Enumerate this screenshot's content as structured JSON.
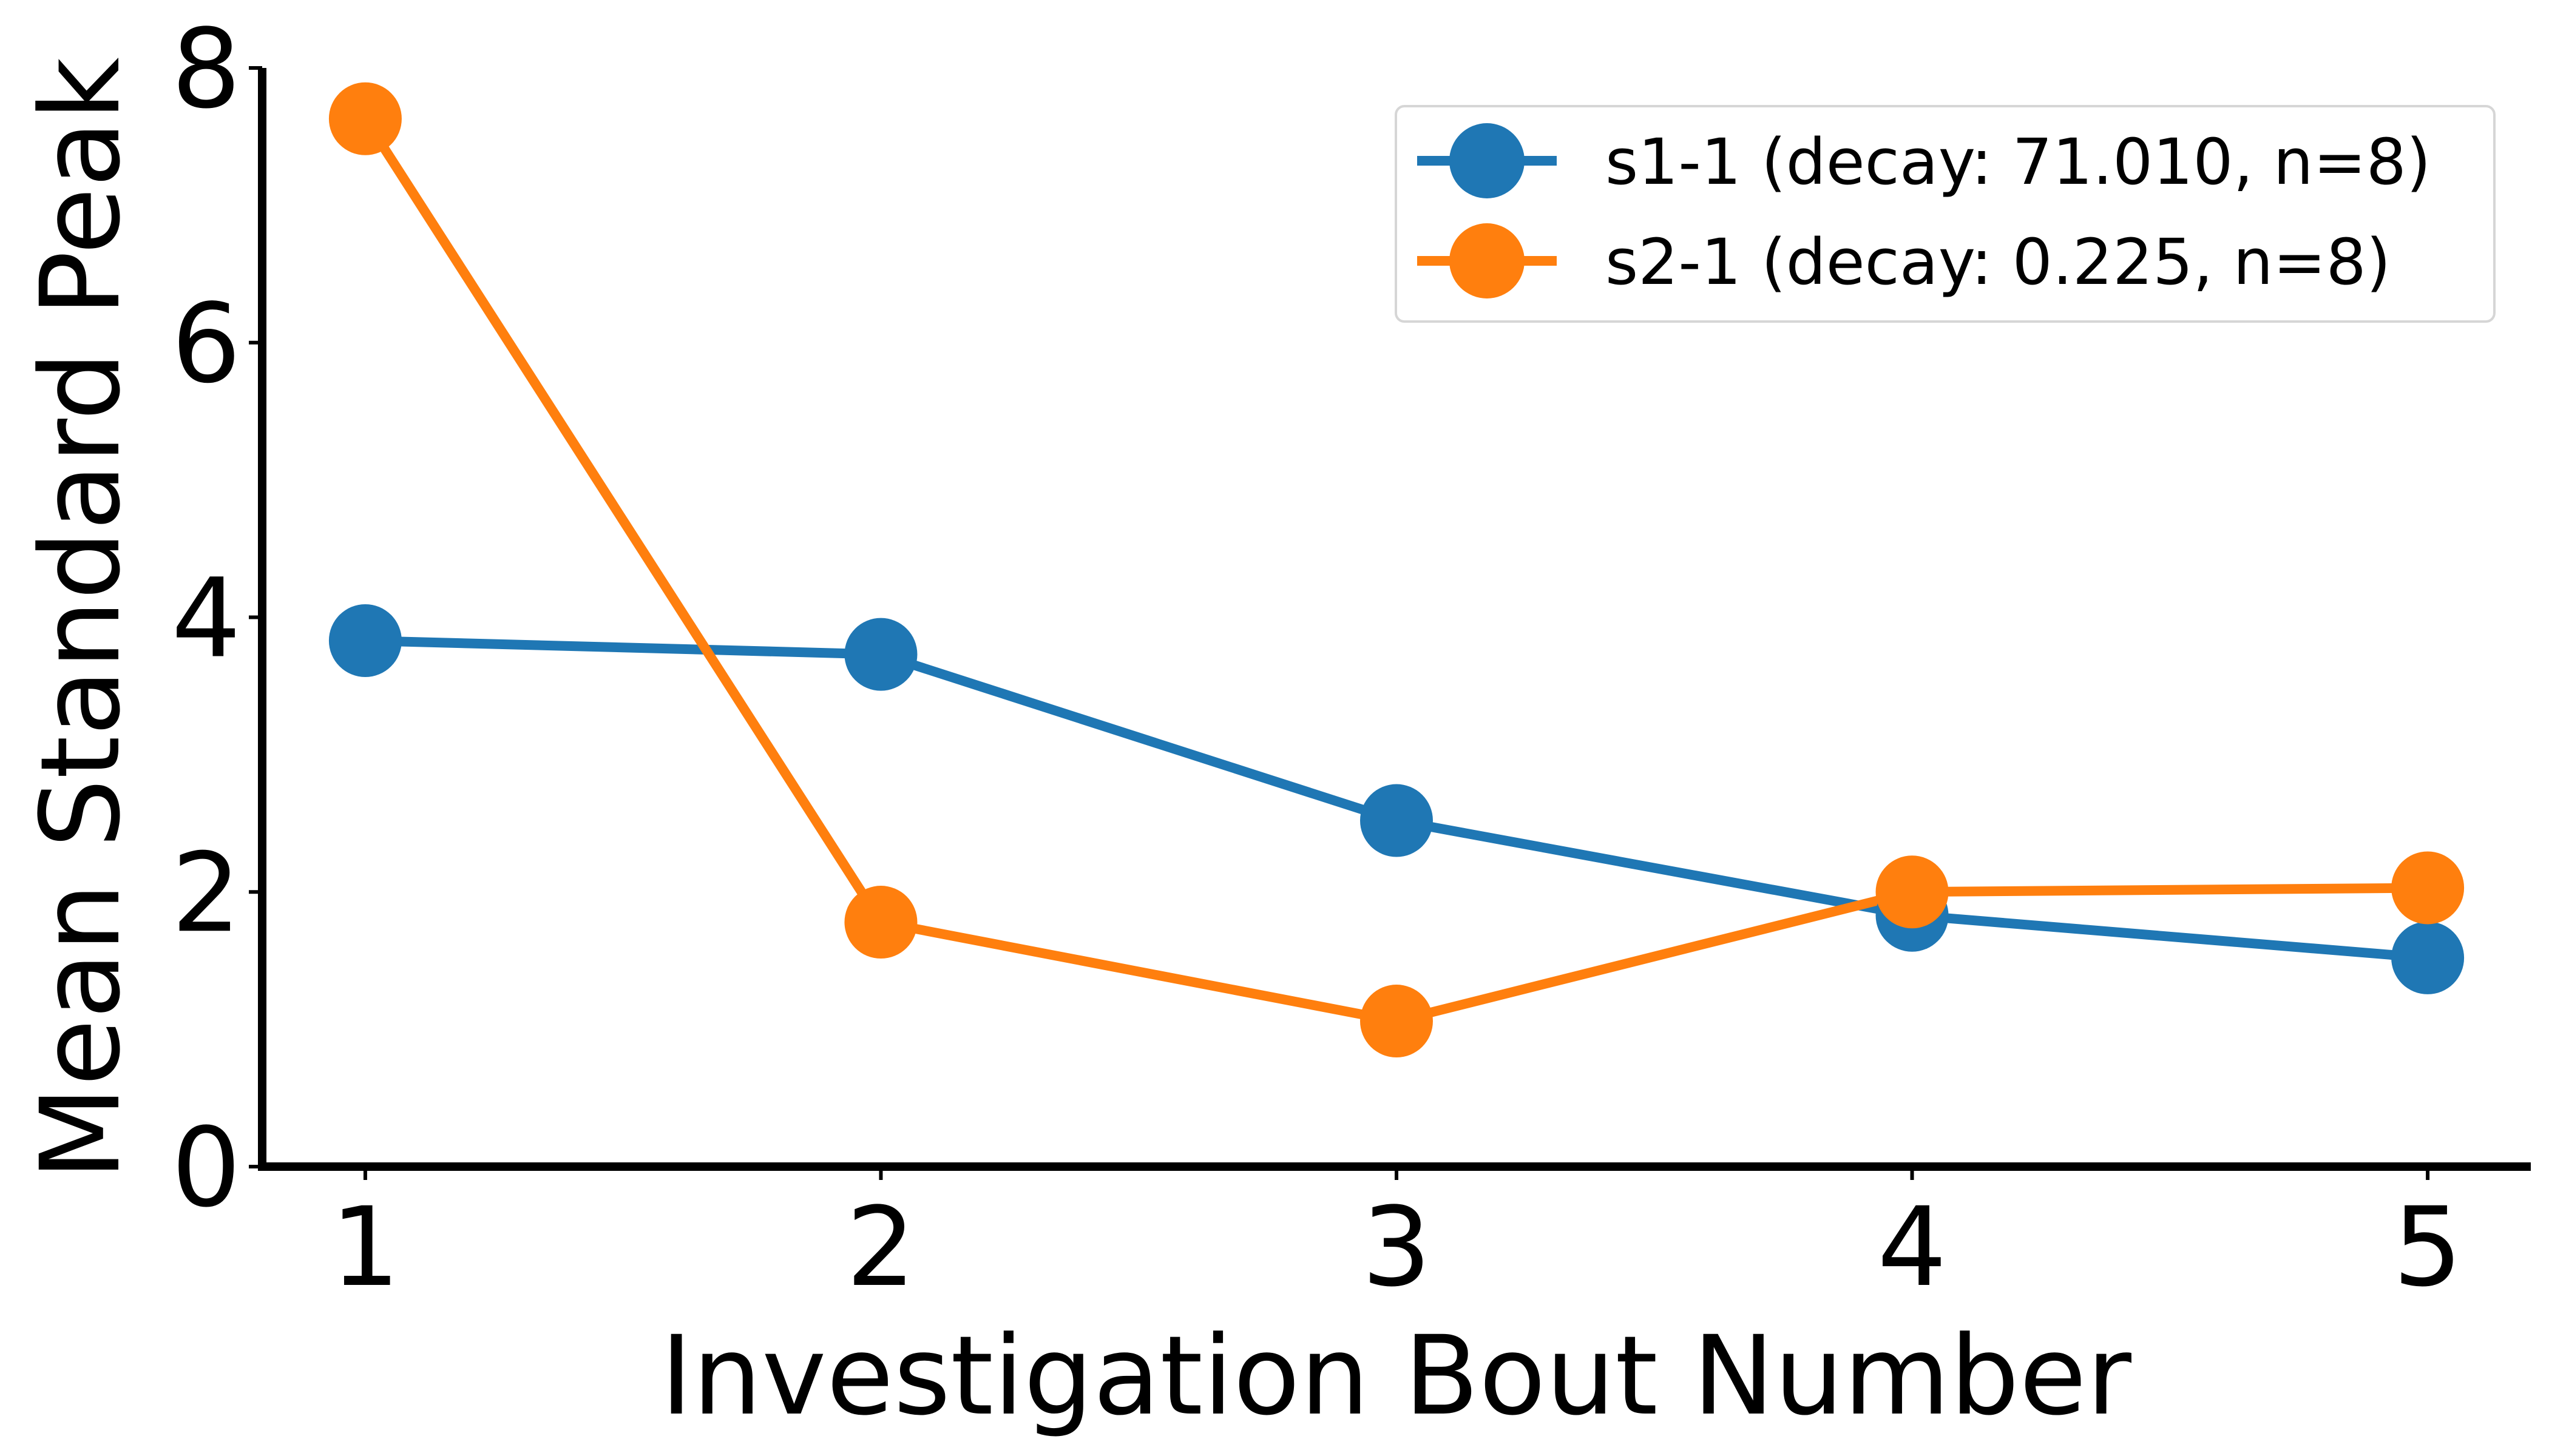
{
  "chart_data": {
    "type": "line",
    "title": "",
    "xlabel": "Investigation Bout Number",
    "ylabel": "Mean Standard Peak",
    "x": [
      1,
      2,
      3,
      4,
      5
    ],
    "xlim": [
      0.8,
      5.2
    ],
    "ylim": [
      0,
      8
    ],
    "xticks": [
      1,
      2,
      3,
      4,
      5
    ],
    "yticks": [
      0,
      2,
      4,
      6,
      8
    ],
    "grid": false,
    "legend_position": "top-right",
    "series": [
      {
        "name": "s1-1 (decay: 71.010, n=8)",
        "color": "#1f77b4",
        "values": [
          3.83,
          3.73,
          2.52,
          1.83,
          1.52
        ]
      },
      {
        "name": "s2-1 (decay: 0.225, n=8)",
        "color": "#ff7f0e",
        "values": [
          7.63,
          1.78,
          1.06,
          2.0,
          2.03
        ]
      }
    ]
  }
}
